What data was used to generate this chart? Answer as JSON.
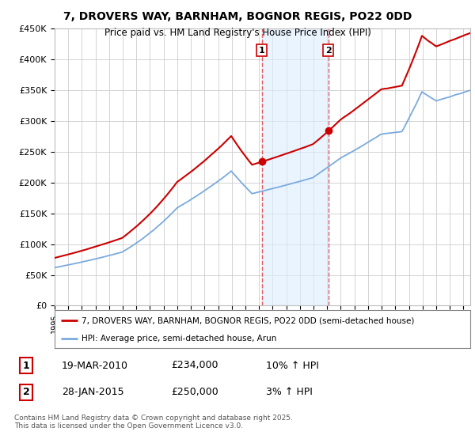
{
  "title": "7, DROVERS WAY, BARNHAM, BOGNOR REGIS, PO22 0DD",
  "subtitle": "Price paid vs. HM Land Registry's House Price Index (HPI)",
  "ylabel_ticks": [
    "£0",
    "£50K",
    "£100K",
    "£150K",
    "£200K",
    "£250K",
    "£300K",
    "£350K",
    "£400K",
    "£450K"
  ],
  "ytick_values": [
    0,
    50000,
    100000,
    150000,
    200000,
    250000,
    300000,
    350000,
    400000,
    450000
  ],
  "ylim": [
    0,
    450000
  ],
  "xlim_start": 1995.0,
  "xlim_end": 2025.5,
  "background_color": "#ffffff",
  "plot_bg_color": "#ffffff",
  "grid_color": "#cccccc",
  "sale1": {
    "date_num": 2010.21,
    "price": 234000,
    "label": "1",
    "date_str": "19-MAR-2010",
    "hpi_change": "10% ↑ HPI"
  },
  "sale2": {
    "date_num": 2015.08,
    "price": 250000,
    "label": "2",
    "date_str": "28-JAN-2015",
    "hpi_change": "3% ↑ HPI"
  },
  "legend_entry1": "7, DROVERS WAY, BARNHAM, BOGNOR REGIS, PO22 0DD (semi-detached house)",
  "legend_entry2": "HPI: Average price, semi-detached house, Arun",
  "footer": "Contains HM Land Registry data © Crown copyright and database right 2025.\nThis data is licensed under the Open Government Licence v3.0.",
  "line_red": "#cc0000",
  "line_blue": "#7aaadd",
  "shaded_color": "#ddeeff",
  "vline_color": "#dd4444"
}
